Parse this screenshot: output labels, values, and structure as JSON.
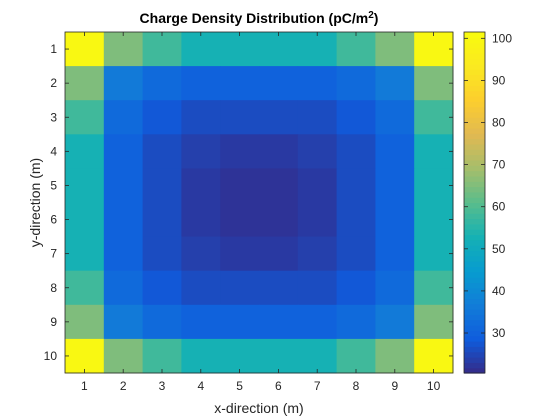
{
  "chart_data": {
    "type": "heatmap",
    "title_main": "Charge Density Distribution (pC/m",
    "title_sup": "2",
    "title_close": ")",
    "xlabel": "x-direction (m)",
    "ylabel": "y-direction (m)",
    "x_ticks": [
      "1",
      "2",
      "3",
      "4",
      "5",
      "6",
      "7",
      "8",
      "9",
      "10"
    ],
    "y_ticks": [
      "1",
      "2",
      "3",
      "4",
      "5",
      "6",
      "7",
      "8",
      "9",
      "10"
    ],
    "colorbar_ticks": [
      "30",
      "40",
      "50",
      "60",
      "70",
      "80",
      "90",
      "100"
    ],
    "colorbar_range": [
      20.5,
      101.5
    ],
    "colormap": "parula",
    "y_direction": "reverse",
    "values": [
      [
        100,
        65,
        58,
        53,
        53,
        53,
        53,
        58,
        65,
        100
      ],
      [
        65,
        36,
        32,
        30,
        30,
        30,
        30,
        32,
        36,
        65
      ],
      [
        58,
        32,
        28,
        26,
        26,
        26,
        26,
        28,
        32,
        58
      ],
      [
        53,
        30,
        26,
        24,
        23,
        23,
        24,
        26,
        30,
        53
      ],
      [
        53,
        30,
        26,
        23,
        22,
        22,
        23,
        26,
        30,
        53
      ],
      [
        53,
        30,
        26,
        23,
        22,
        22,
        23,
        26,
        30,
        53
      ],
      [
        53,
        30,
        26,
        24,
        23,
        23,
        24,
        26,
        30,
        53
      ],
      [
        58,
        32,
        28,
        26,
        26,
        26,
        26,
        28,
        32,
        58
      ],
      [
        65,
        36,
        32,
        30,
        30,
        30,
        30,
        32,
        36,
        65
      ],
      [
        100,
        65,
        58,
        53,
        53,
        53,
        53,
        58,
        65,
        100
      ]
    ]
  }
}
